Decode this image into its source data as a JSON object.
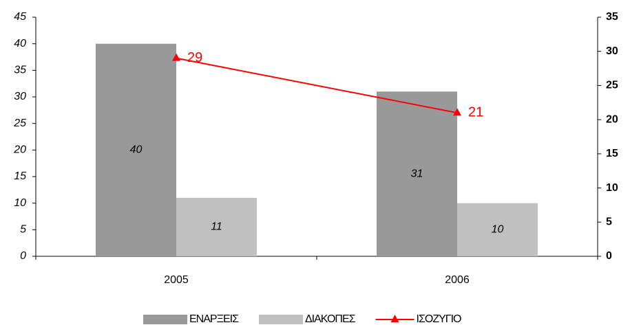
{
  "chart_data": {
    "type": "bar",
    "categories": [
      "2005",
      "2006"
    ],
    "series": [
      {
        "name": "ΕΝΑΡΞΕΙΣ",
        "color": "#999999",
        "values": [
          40,
          31
        ]
      },
      {
        "name": "ΔΙΑΚΟΠΕΣ",
        "color": "#c0c0c0",
        "values": [
          11,
          10
        ]
      },
      {
        "name": "ΙΣΟΖΥΓΙΟ",
        "color": "#ff0000",
        "type": "line",
        "axis": "y2",
        "values": [
          29,
          21
        ]
      }
    ],
    "ylim": [
      0,
      45
    ],
    "yticks": [
      0,
      5,
      10,
      15,
      20,
      25,
      30,
      35,
      40,
      45
    ],
    "y2lim": [
      0,
      35
    ],
    "y2ticks": [
      0,
      5,
      10,
      15,
      20,
      25,
      30,
      35
    ],
    "legend": "bottom"
  }
}
